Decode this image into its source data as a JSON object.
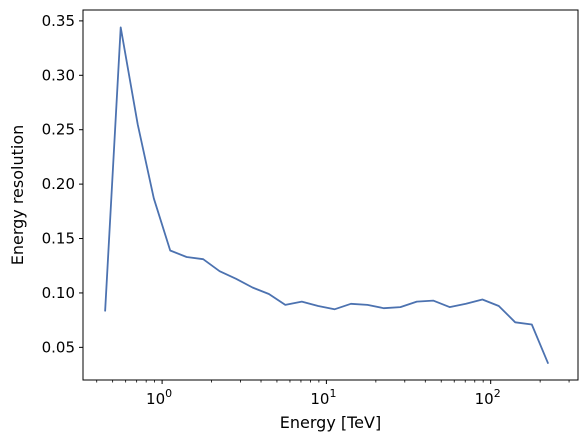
{
  "chart_data": {
    "type": "line",
    "title": "",
    "xlabel": "Energy [TeV]",
    "ylabel": "Energy resolution",
    "x_scale": "log",
    "xlim": [
      0.33,
      340
    ],
    "ylim": [
      0.02,
      0.36
    ],
    "grid": false,
    "legend": "none",
    "line_color": "#4c72b0",
    "x_ticks": [
      {
        "value": 1,
        "base": "10",
        "exp": "0"
      },
      {
        "value": 10,
        "base": "10",
        "exp": "1"
      },
      {
        "value": 100,
        "base": "10",
        "exp": "2"
      }
    ],
    "y_ticks": [
      {
        "value": 0.05,
        "label": "0.05"
      },
      {
        "value": 0.1,
        "label": "0.10"
      },
      {
        "value": 0.15,
        "label": "0.15"
      },
      {
        "value": 0.2,
        "label": "0.20"
      },
      {
        "value": 0.25,
        "label": "0.25"
      },
      {
        "value": 0.3,
        "label": "0.30"
      },
      {
        "value": 0.35,
        "label": "0.35"
      }
    ],
    "series": [
      {
        "x": [
          0.45,
          0.56,
          0.71,
          0.89,
          1.12,
          1.41,
          1.78,
          2.24,
          2.82,
          3.55,
          4.47,
          5.62,
          7.08,
          8.91,
          11.2,
          14.1,
          17.8,
          22.4,
          28.2,
          35.5,
          44.7,
          56.2,
          70.8,
          89.1,
          112,
          141,
          178,
          224
        ],
        "y": [
          0.083,
          0.344,
          0.255,
          0.187,
          0.139,
          0.133,
          0.131,
          0.12,
          0.113,
          0.105,
          0.099,
          0.089,
          0.092,
          0.088,
          0.085,
          0.09,
          0.089,
          0.086,
          0.087,
          0.092,
          0.093,
          0.087,
          0.09,
          0.094,
          0.088,
          0.073,
          0.071,
          0.035
        ]
      }
    ]
  }
}
